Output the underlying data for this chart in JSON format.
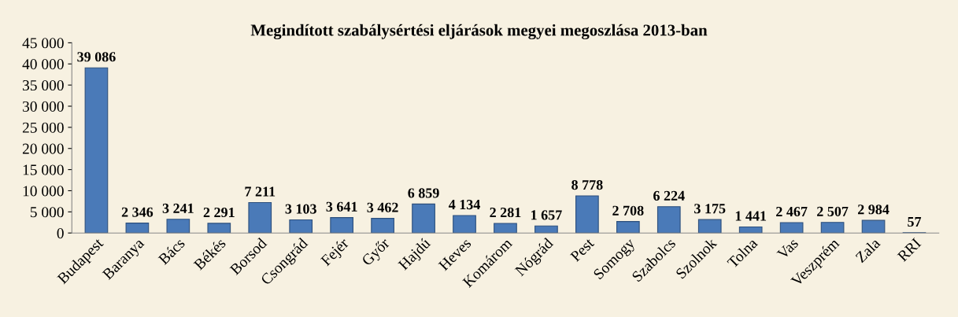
{
  "chart_data": {
    "type": "bar",
    "title": "Megindított szabálysértési eljárások megyei megoszlása 2013-ban",
    "categories": [
      "Budapest",
      "Baranya",
      "Bács",
      "Békés",
      "Borsod",
      "Csongrád",
      "Fejér",
      "Győr",
      "Hajdú",
      "Heves",
      "Komárom",
      "Nógrád",
      "Pest",
      "Somogy",
      "Szabolcs",
      "Szolnok",
      "Tolna",
      "Vas",
      "Veszprém",
      "Zala",
      "RRI"
    ],
    "values": [
      39086,
      2346,
      3241,
      2291,
      7211,
      3103,
      3641,
      3462,
      6859,
      4134,
      2281,
      1657,
      8778,
      2708,
      6224,
      3175,
      1441,
      2467,
      2507,
      2984,
      57
    ],
    "value_labels": [
      "39 086",
      "2 346",
      "3 241",
      "2 291",
      "7 211",
      "3 103",
      "3 641",
      "3 462",
      "6 859",
      "4 134",
      "2 281",
      "1 657",
      "8 778",
      "2 708",
      "6 224",
      "3 175",
      "1 441",
      "2 467",
      "2 507",
      "2 984",
      "57"
    ],
    "color": "#4a7ab8",
    "ylim": [
      0,
      45000
    ],
    "yticks": [
      0,
      {
        "value": 5000,
        "label": "5 000"
      },
      {
        "value": 10000,
        "label": "10 000"
      },
      {
        "value": 15000,
        "label": "15 000"
      },
      {
        "value": 20000,
        "label": "20 000"
      },
      {
        "value": 25000,
        "label": "25 000"
      },
      {
        "value": 30000,
        "label": "30 000"
      },
      {
        "value": 35000,
        "label": "35 000"
      },
      {
        "value": 40000,
        "label": "40 000"
      },
      {
        "value": 45000,
        "label": "45 000"
      }
    ],
    "grid": false,
    "legend": false
  }
}
